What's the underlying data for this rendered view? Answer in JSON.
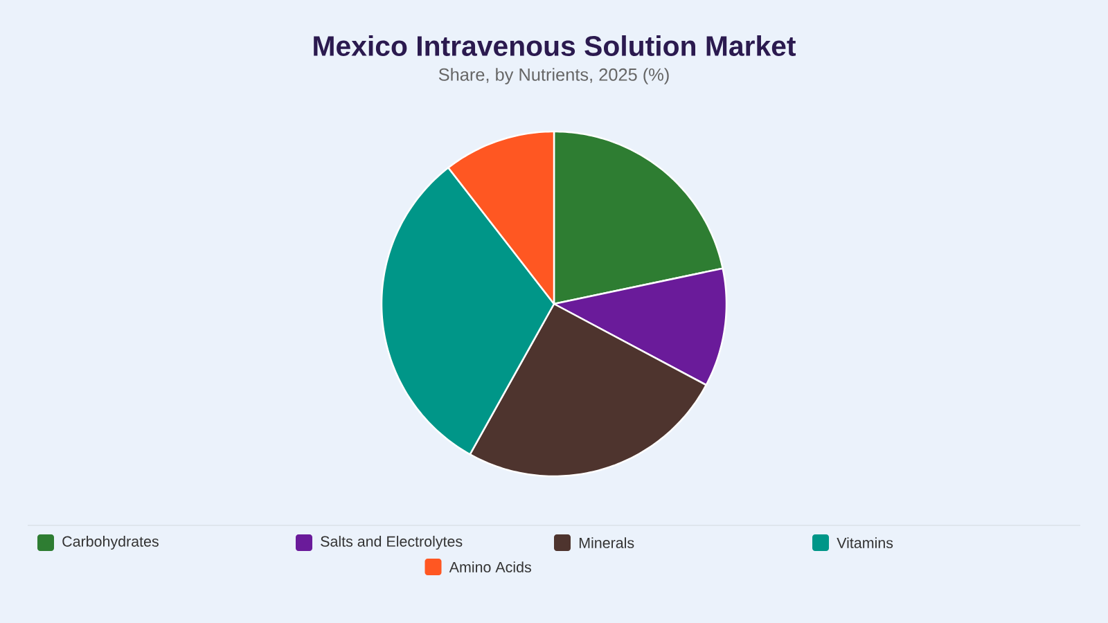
{
  "chart_data": {
    "type": "pie",
    "title": "Mexico Intravenous Solution Market",
    "subtitle": "Share, by Nutrients, 2025 (%)",
    "categories": [
      "Carbohydrates",
      "Salts and Electrolytes",
      "Minerals",
      "Vitamins",
      "Amino Acids"
    ],
    "values": [
      21.7,
      11.1,
      25.3,
      31.4,
      10.5
    ],
    "colors": [
      "#2e7d32",
      "#6a1b9a",
      "#4e342e",
      "#009688",
      "#ff5722"
    ],
    "legend": "bottom"
  }
}
